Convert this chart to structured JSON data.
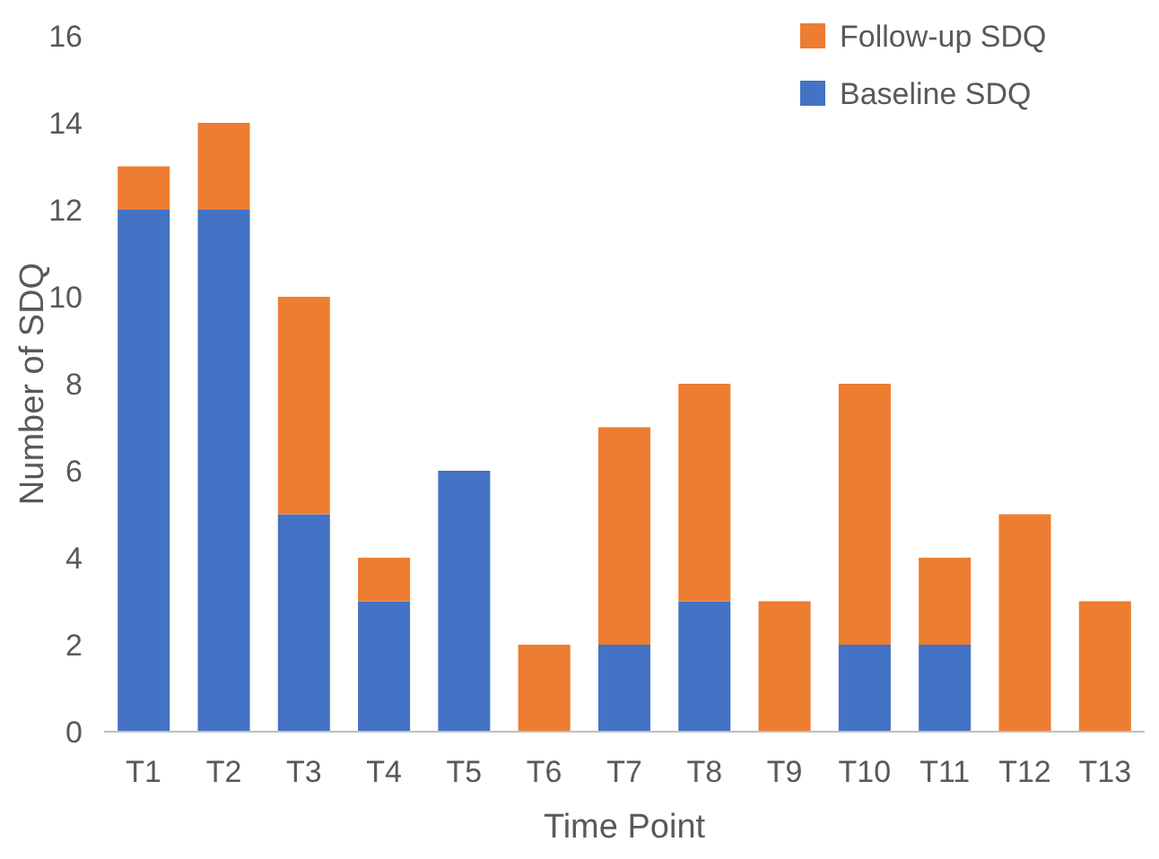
{
  "chart_data": {
    "type": "bar",
    "stacked": true,
    "xlabel": "Time Point",
    "ylabel": "Number of SDQ",
    "categories": [
      "T1",
      "T2",
      "T3",
      "T4",
      "T5",
      "T6",
      "T7",
      "T8",
      "T9",
      "T10",
      "T11",
      "T12",
      "T13"
    ],
    "series": [
      {
        "name": "Baseline SDQ",
        "color": "#4472c4",
        "values": [
          12,
          12,
          5,
          3,
          6,
          0,
          2,
          3,
          0,
          2,
          2,
          0,
          0
        ]
      },
      {
        "name": "Follow-up SDQ",
        "color": "#ed7d31",
        "values": [
          1,
          2,
          5,
          1,
          0,
          2,
          5,
          5,
          3,
          6,
          2,
          5,
          3
        ]
      }
    ],
    "ylim": [
      0,
      16
    ],
    "yticks": [
      0,
      2,
      4,
      6,
      8,
      10,
      12,
      14,
      16
    ],
    "grid": false,
    "legend": "top right"
  }
}
